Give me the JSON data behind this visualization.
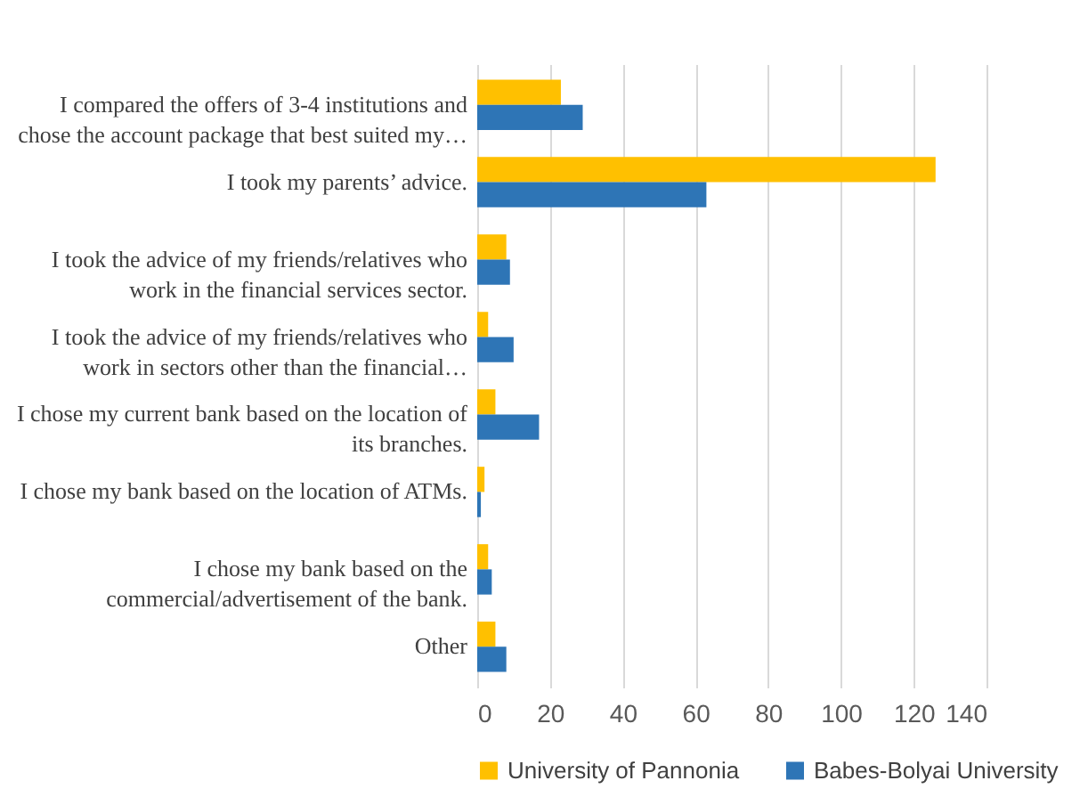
{
  "chart_data": {
    "type": "bar",
    "orientation": "horizontal",
    "categories": [
      "I compared the offers of 3-4 institutions and chose the account package that best suited my…",
      "I took my parents’ advice.",
      "I took the advice of my friends/relatives who work in the financial services sector.",
      "I took the advice of my friends/relatives who work in sectors other than the financial…",
      "I chose my current bank based on the location of its branches.",
      "I chose my bank based on the location of ATMs.",
      "I chose my bank based on the commercial/advertisement of the bank.",
      "Other"
    ],
    "series": [
      {
        "name": "University of Pannonia",
        "color": "#ffc000",
        "values": [
          23,
          126,
          8,
          3,
          5,
          2,
          3,
          5
        ]
      },
      {
        "name": "Babes-Bolyai University",
        "color": "#2e75b6",
        "values": [
          29,
          63,
          9,
          10,
          17,
          1,
          4,
          8
        ]
      }
    ],
    "xlim": [
      0,
      140
    ],
    "xticks": [
      0,
      20,
      40,
      60,
      80,
      100,
      120,
      140
    ],
    "grid": "x",
    "legend": "bottom"
  }
}
